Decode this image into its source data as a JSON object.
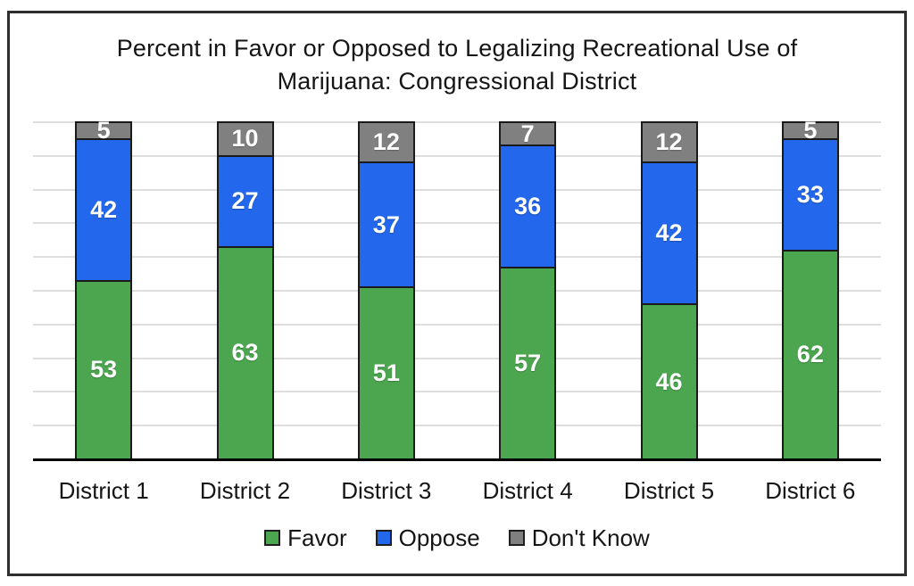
{
  "chart_data": {
    "type": "bar",
    "subtype": "stacked-column",
    "title": "Percent in Favor or Opposed to Legalizing Recreational Use of Marijuana: Congressional District",
    "title_lines": [
      "Percent in Favor or Opposed to Legalizing Recreational Use of",
      "Marijuana: Congressional District"
    ],
    "categories": [
      "District 1",
      "District 2",
      "District 3",
      "District 4",
      "District 5",
      "District 6"
    ],
    "series": [
      {
        "name": "Favor",
        "color": "#4BA64F",
        "values": [
          53,
          63,
          51,
          57,
          46,
          62
        ]
      },
      {
        "name": "Oppose",
        "color": "#2367EC",
        "values": [
          42,
          27,
          37,
          36,
          42,
          33
        ]
      },
      {
        "name": "Don't Know",
        "color": "#808080",
        "values": [
          5,
          10,
          12,
          7,
          12,
          5
        ]
      }
    ],
    "xlabel": "",
    "ylabel": "",
    "ylim": [
      0,
      100
    ],
    "gridline_step": 10,
    "grid": true,
    "y_tick_labels_shown": false,
    "legend_position": "bottom",
    "bar_value_labels_shown": true,
    "colors": {
      "value_label": "#FFFFFF",
      "segment_border": "#1A1A1A",
      "gridline": "#DEDEDE",
      "axis_line": "#000000",
      "frame_border": "#2E2E2E",
      "text": "#151515",
      "background": "#FFFFFF"
    }
  }
}
